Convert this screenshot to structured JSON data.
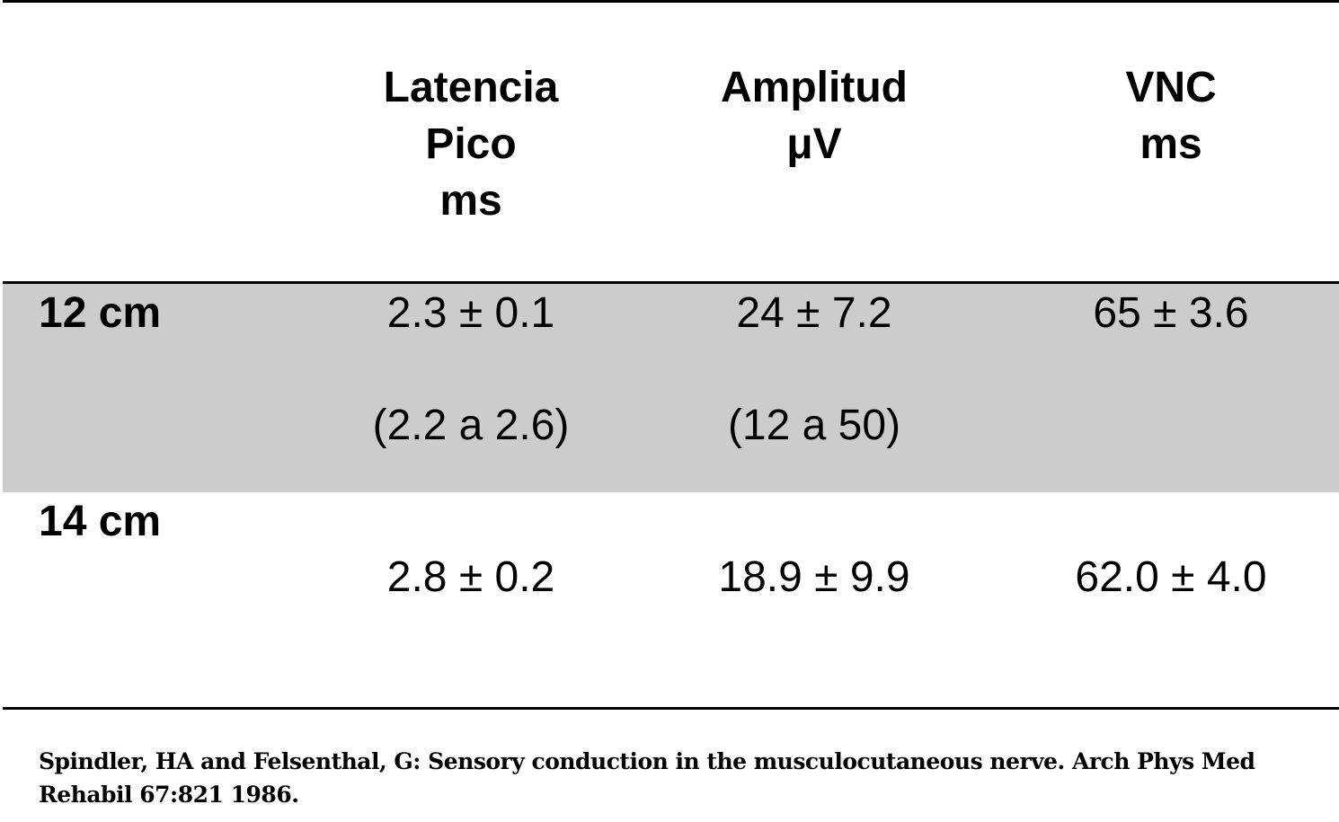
{
  "table": {
    "headers": [
      {
        "line1": "Latencia",
        "line2": "Pico",
        "line3": "ms"
      },
      {
        "line1": "Amplitud",
        "line2": "μV",
        "line3": ""
      },
      {
        "line1": "VNC",
        "line2": "ms",
        "line3": ""
      }
    ],
    "rows": [
      {
        "label": "12 cm",
        "values": [
          "2.3 ± 0.1",
          "24 ± 7.2",
          "65 ± 3.6"
        ],
        "ranges": [
          "(2.2 a 2.6)",
          "(12 a 50)",
          ""
        ],
        "shaded": true
      },
      {
        "label": "14 cm",
        "values": [
          "2.8 ± 0.2",
          "18.9 ± 9.9",
          "62.0 ± 4.0"
        ],
        "ranges": [
          "",
          "",
          ""
        ],
        "shaded": false
      }
    ]
  },
  "caption": "Spindler, HA and Felsenthal, G: Sensory conduction in the musculocutaneous nerve. Arch Phys Med Rehabil 67:821 1986.",
  "colors": {
    "shade": "#cccccc",
    "rule": "#000000",
    "background": "#ffffff"
  }
}
